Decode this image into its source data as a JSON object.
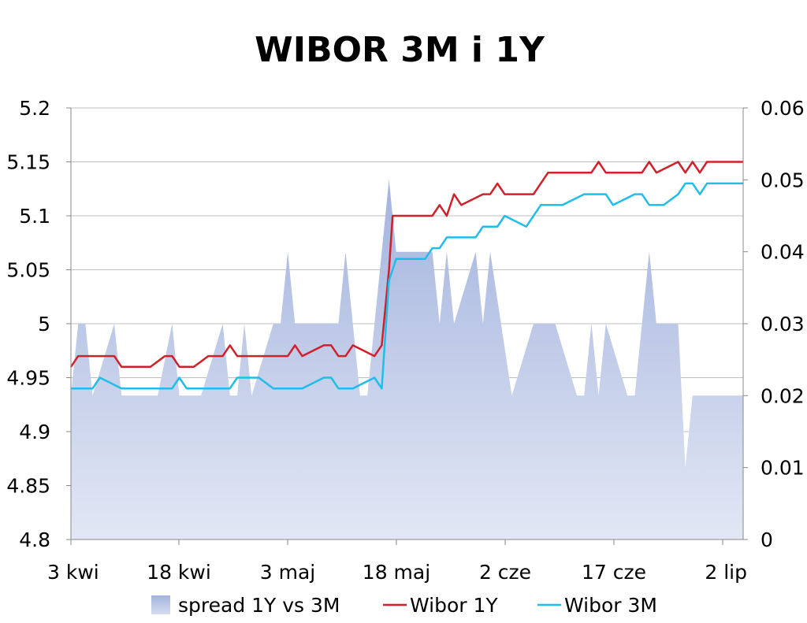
{
  "chart_data": {
    "type": "line",
    "title": "WIBOR 3M i 1Y",
    "x_tick_labels": [
      "3 kwi",
      "18 kwi",
      "3 maj",
      "18 maj",
      "2 cze",
      "17 cze",
      "2 lip"
    ],
    "x_start": "2009-04-03",
    "x_end": "2009-07-05",
    "y_left": {
      "min": 4.8,
      "max": 5.2,
      "ticks": [
        "4.8",
        "4.85",
        "4.9",
        "4.95",
        "5",
        "5.05",
        "5.1",
        "5.15",
        "5.2"
      ]
    },
    "y_right": {
      "min": 0,
      "max": 0.06,
      "ticks": [
        "0",
        "0.01",
        "0.02",
        "0.03",
        "0.04",
        "0.05",
        "0.06"
      ]
    },
    "legend": {
      "position": "bottom"
    },
    "grid": true,
    "series": [
      {
        "name": "spread 1Y vs 3M",
        "type": "area",
        "axis": "right",
        "color": "#a8b8e0",
        "points": [
          [
            "2009-04-03",
            0.02
          ],
          [
            "2009-04-04",
            0.03
          ],
          [
            "2009-04-05",
            0.03
          ],
          [
            "2009-04-06",
            0.02
          ],
          [
            "2009-04-09",
            0.03
          ],
          [
            "2009-04-10",
            0.02
          ],
          [
            "2009-04-12",
            0.02
          ],
          [
            "2009-04-15",
            0.02
          ],
          [
            "2009-04-17",
            0.03
          ],
          [
            "2009-04-18",
            0.02
          ],
          [
            "2009-04-21",
            0.02
          ],
          [
            "2009-04-24",
            0.03
          ],
          [
            "2009-04-25",
            0.02
          ],
          [
            "2009-04-26",
            0.02
          ],
          [
            "2009-04-27",
            0.03
          ],
          [
            "2009-04-28",
            0.02
          ],
          [
            "2009-05-01",
            0.03
          ],
          [
            "2009-05-02",
            0.03
          ],
          [
            "2009-05-03",
            0.04
          ],
          [
            "2009-05-04",
            0.03
          ],
          [
            "2009-05-10",
            0.03
          ],
          [
            "2009-05-11",
            0.04
          ],
          [
            "2009-05-13",
            0.02
          ],
          [
            "2009-05-14",
            0.02
          ],
          [
            "2009-05-15",
            0.03
          ],
          [
            "2009-05-17",
            0.05
          ],
          [
            "2009-05-18",
            0.04
          ],
          [
            "2009-05-23",
            0.04
          ],
          [
            "2009-05-24",
            0.03
          ],
          [
            "2009-05-25",
            0.04
          ],
          [
            "2009-05-26",
            0.03
          ],
          [
            "2009-05-29",
            0.04
          ],
          [
            "2009-05-30",
            0.03
          ],
          [
            "2009-05-31",
            0.04
          ],
          [
            "2009-06-03",
            0.02
          ],
          [
            "2009-06-06",
            0.03
          ],
          [
            "2009-06-09",
            0.03
          ],
          [
            "2009-06-12",
            0.02
          ],
          [
            "2009-06-13",
            0.02
          ],
          [
            "2009-06-14",
            0.03
          ],
          [
            "2009-06-15",
            0.02
          ],
          [
            "2009-06-16",
            0.03
          ],
          [
            "2009-06-19",
            0.02
          ],
          [
            "2009-06-20",
            0.02
          ],
          [
            "2009-06-22",
            0.04
          ],
          [
            "2009-06-23",
            0.03
          ],
          [
            "2009-06-26",
            0.03
          ],
          [
            "2009-06-27",
            0.01
          ],
          [
            "2009-06-28",
            0.02
          ],
          [
            "2009-07-05",
            0.02
          ]
        ]
      },
      {
        "name": "Wibor 1Y",
        "type": "line",
        "axis": "left",
        "color": "#d0202a",
        "points": [
          [
            "2009-04-03",
            4.96
          ],
          [
            "2009-04-04",
            4.97
          ],
          [
            "2009-04-09",
            4.97
          ],
          [
            "2009-04-10",
            4.96
          ],
          [
            "2009-04-14",
            4.96
          ],
          [
            "2009-04-16",
            4.97
          ],
          [
            "2009-04-17",
            4.97
          ],
          [
            "2009-04-18",
            4.96
          ],
          [
            "2009-04-20",
            4.96
          ],
          [
            "2009-04-22",
            4.97
          ],
          [
            "2009-04-24",
            4.97
          ],
          [
            "2009-04-25",
            4.98
          ],
          [
            "2009-04-26",
            4.97
          ],
          [
            "2009-05-03",
            4.97
          ],
          [
            "2009-05-04",
            4.98
          ],
          [
            "2009-05-05",
            4.97
          ],
          [
            "2009-05-08",
            4.98
          ],
          [
            "2009-05-09",
            4.98
          ],
          [
            "2009-05-10",
            4.97
          ],
          [
            "2009-05-11",
            4.97
          ],
          [
            "2009-05-12",
            4.98
          ],
          [
            "2009-05-15",
            4.97
          ],
          [
            "2009-05-16",
            4.98
          ],
          [
            "2009-05-17",
            5.05
          ],
          [
            "2009-05-17T12:00",
            5.1
          ],
          [
            "2009-05-23",
            5.1
          ],
          [
            "2009-05-24",
            5.11
          ],
          [
            "2009-05-25",
            5.1
          ],
          [
            "2009-05-26",
            5.12
          ],
          [
            "2009-05-27",
            5.11
          ],
          [
            "2009-05-30",
            5.12
          ],
          [
            "2009-05-31",
            5.12
          ],
          [
            "2009-06-01",
            5.13
          ],
          [
            "2009-06-02",
            5.12
          ],
          [
            "2009-06-06",
            5.12
          ],
          [
            "2009-06-08",
            5.14
          ],
          [
            "2009-06-14",
            5.14
          ],
          [
            "2009-06-15",
            5.15
          ],
          [
            "2009-06-16",
            5.14
          ],
          [
            "2009-06-21",
            5.14
          ],
          [
            "2009-06-22",
            5.15
          ],
          [
            "2009-06-23",
            5.14
          ],
          [
            "2009-06-26",
            5.15
          ],
          [
            "2009-06-27",
            5.14
          ],
          [
            "2009-06-28",
            5.15
          ],
          [
            "2009-06-29",
            5.14
          ],
          [
            "2009-06-30",
            5.15
          ],
          [
            "2009-07-05",
            5.15
          ]
        ]
      },
      {
        "name": "Wibor 3M",
        "type": "line",
        "axis": "left",
        "color": "#1fbde8",
        "points": [
          [
            "2009-04-03",
            4.94
          ],
          [
            "2009-04-06",
            4.94
          ],
          [
            "2009-04-07",
            4.95
          ],
          [
            "2009-04-10",
            4.94
          ],
          [
            "2009-04-17",
            4.94
          ],
          [
            "2009-04-18",
            4.95
          ],
          [
            "2009-04-19",
            4.94
          ],
          [
            "2009-04-25",
            4.94
          ],
          [
            "2009-04-26",
            4.95
          ],
          [
            "2009-04-29",
            4.95
          ],
          [
            "2009-05-01",
            4.94
          ],
          [
            "2009-05-05",
            4.94
          ],
          [
            "2009-05-08",
            4.95
          ],
          [
            "2009-05-09",
            4.95
          ],
          [
            "2009-05-10",
            4.94
          ],
          [
            "2009-05-12",
            4.94
          ],
          [
            "2009-05-15",
            4.95
          ],
          [
            "2009-05-16",
            4.94
          ],
          [
            "2009-05-17",
            5.04
          ],
          [
            "2009-05-17T12:00",
            5.05
          ],
          [
            "2009-05-18",
            5.06
          ],
          [
            "2009-05-22",
            5.06
          ],
          [
            "2009-05-23",
            5.07
          ],
          [
            "2009-05-24",
            5.07
          ],
          [
            "2009-05-25",
            5.08
          ],
          [
            "2009-05-29",
            5.08
          ],
          [
            "2009-05-30",
            5.09
          ],
          [
            "2009-06-01",
            5.09
          ],
          [
            "2009-06-02",
            5.1
          ],
          [
            "2009-06-05",
            5.09
          ],
          [
            "2009-06-07",
            5.11
          ],
          [
            "2009-06-10",
            5.11
          ],
          [
            "2009-06-13",
            5.12
          ],
          [
            "2009-06-16",
            5.12
          ],
          [
            "2009-06-17",
            5.11
          ],
          [
            "2009-06-20",
            5.12
          ],
          [
            "2009-06-21",
            5.12
          ],
          [
            "2009-06-22",
            5.11
          ],
          [
            "2009-06-24",
            5.11
          ],
          [
            "2009-06-26",
            5.12
          ],
          [
            "2009-06-27",
            5.13
          ],
          [
            "2009-06-28",
            5.13
          ],
          [
            "2009-06-29",
            5.12
          ],
          [
            "2009-06-30",
            5.13
          ],
          [
            "2009-07-05",
            5.13
          ]
        ]
      }
    ]
  }
}
